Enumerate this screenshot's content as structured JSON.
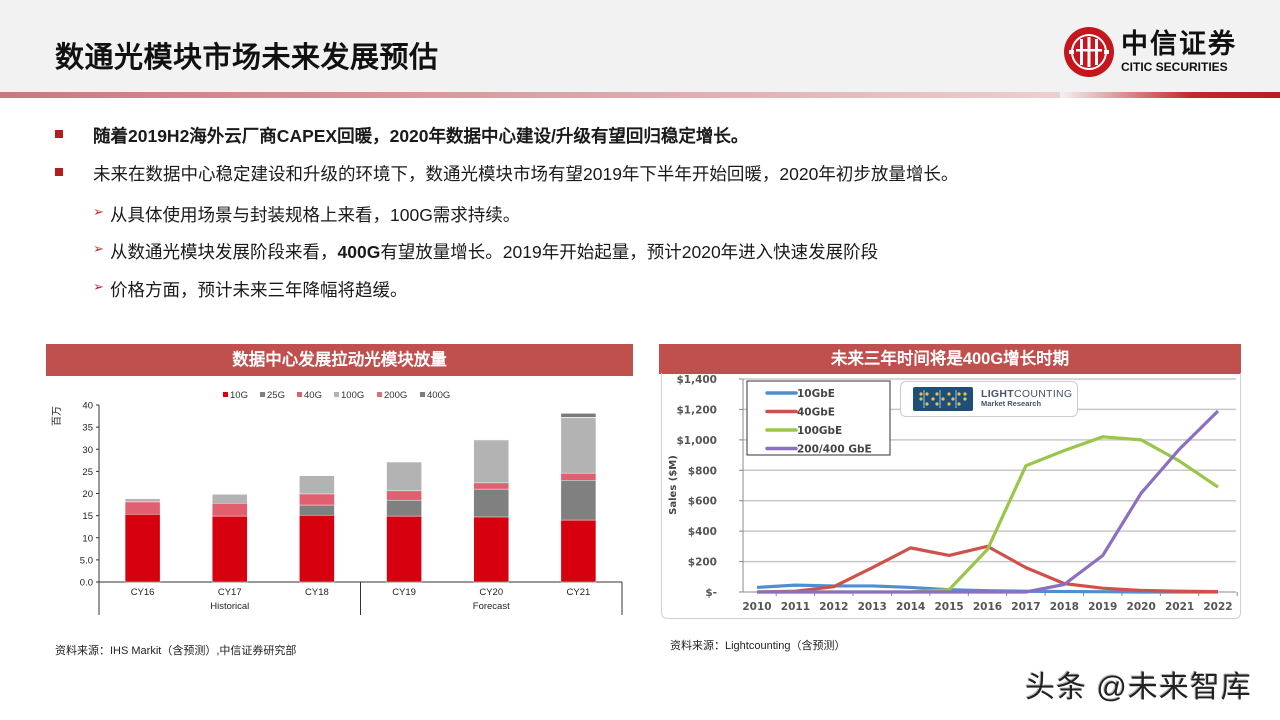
{
  "header": {
    "title": "数通光模块市场未来发展预估",
    "logo_cn": "中信证券",
    "logo_en": "CITIC SECURITIES"
  },
  "bullets": [
    {
      "text": "随着2019H2海外云厂商CAPEX回暖，2020年数据中心建设/升级有望回归稳定增长。",
      "bold": true
    },
    {
      "text": "未来在数据中心稳定建设和升级的环境下，数通光模块市场有望2019年下半年开始回暖，2020年初步放量增长。",
      "bold": false
    }
  ],
  "sub_bullets": [
    {
      "pre": "从具体使用场景与封装规格上来看，100G需求持续。",
      "bold": "",
      "post": ""
    },
    {
      "pre": "从数通光模块发展阶段来看，",
      "bold": "400G",
      "post": "有望放量增长。2019年开始起量，预计2020年进入快速发展阶段"
    },
    {
      "pre": "价格方面，预计未来三年降幅将趋缓。",
      "bold": "",
      "post": ""
    }
  ],
  "left_panel": {
    "title": "数据中心发展拉动光模块放量",
    "source": "资料来源：IHS Markit（含预测）,中信证券研究部"
  },
  "right_panel": {
    "title": "未来三年时间将是400G增长时期",
    "source": "资料来源：Lightcounting（含预测）",
    "badge_bold": "LIGHT",
    "badge_rest": "COUNTING",
    "badge_sub": "Market Research"
  },
  "watermark": "头条 @未来智库",
  "chart_data": [
    {
      "type": "bar",
      "stacked": true,
      "title": "数据中心发展拉动光模块放量",
      "ylabel": "百万",
      "xlabel": "",
      "ylim": [
        0,
        40
      ],
      "yticks": [
        "0.0",
        "5.0",
        "10",
        "15",
        "20",
        "25",
        "30",
        "35",
        "40"
      ],
      "categories": [
        "CY16",
        "CY17",
        "CY18",
        "CY19",
        "CY20",
        "CY21"
      ],
      "category_groups": [
        {
          "label": "Historical",
          "range": [
            0,
            2
          ]
        },
        {
          "label": "Forecast",
          "range": [
            3,
            5
          ]
        }
      ],
      "legend_position": "top",
      "grid": false,
      "series": [
        {
          "name": "10G",
          "color": "#d7000f",
          "values": [
            15.3,
            14.9,
            15.1,
            14.9,
            14.7,
            14.0
          ]
        },
        {
          "name": "25G",
          "color": "#808080",
          "values": [
            0,
            0,
            2.3,
            3.6,
            6.3,
            9.0
          ]
        },
        {
          "name": "40G",
          "color": "#e06070",
          "values": [
            2.8,
            2.9,
            2.5,
            2.1,
            1.4,
            1.6
          ]
        },
        {
          "name": "100G",
          "color": "#b3b3b3",
          "values": [
            0.7,
            2.0,
            4.1,
            6.5,
            9.5,
            12.5
          ]
        },
        {
          "name": "200G",
          "color": "#d9707d",
          "values": [
            0,
            0,
            0,
            0,
            0,
            0.1
          ]
        },
        {
          "name": "400G",
          "color": "#7a7a7a",
          "values": [
            0,
            0,
            0,
            0,
            0.2,
            0.9
          ]
        }
      ]
    },
    {
      "type": "line",
      "title": "未来三年时间将是400G增长时期",
      "ylabel": "Sales ($M)",
      "xlabel": "",
      "ylim": [
        0,
        1400
      ],
      "yticks": [
        "$-",
        "$200",
        "$400",
        "$600",
        "$800",
        "$1,000",
        "$1,200",
        "$1,400"
      ],
      "x": [
        2010,
        2011,
        2012,
        2013,
        2014,
        2015,
        2016,
        2017,
        2018,
        2019,
        2020,
        2021,
        2022
      ],
      "grid": true,
      "legend_position": "top-left inside",
      "series": [
        {
          "name": "10GbE",
          "color": "#4f8fd0",
          "values": [
            30,
            45,
            40,
            40,
            30,
            15,
            8,
            5,
            3,
            2,
            0,
            0,
            0
          ]
        },
        {
          "name": "40GbE",
          "color": "#d0504a",
          "values": [
            0,
            5,
            35,
            160,
            290,
            240,
            300,
            160,
            55,
            25,
            10,
            5,
            3
          ]
        },
        {
          "name": "100GbE",
          "color": "#9bc54a",
          "values": [
            0,
            0,
            0,
            0,
            0,
            15,
            280,
            830,
            930,
            1020,
            1000,
            860,
            690
          ]
        },
        {
          "name": "200/400 GbE",
          "color": "#8c6fc0",
          "values": [
            0,
            0,
            0,
            0,
            0,
            0,
            0,
            0,
            50,
            240,
            650,
            940,
            1190
          ]
        }
      ]
    }
  ]
}
